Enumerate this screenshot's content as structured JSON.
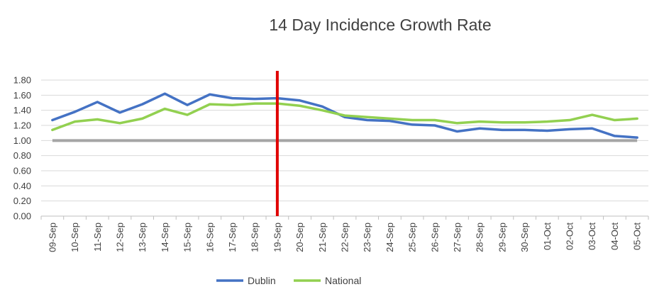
{
  "chart_data": {
    "type": "line",
    "title": "14 Day Incidence Growth Rate",
    "xlabel": "",
    "ylabel": "",
    "categories": [
      "09-Sep",
      "10-Sep",
      "11-Sep",
      "12-Sep",
      "13-Sep",
      "14-Sep",
      "15-Sep",
      "16-Sep",
      "17-Sep",
      "18-Sep",
      "19-Sep",
      "20-Sep",
      "21-Sep",
      "22-Sep",
      "23-Sep",
      "24-Sep",
      "25-Sep",
      "26-Sep",
      "27-Sep",
      "28-Sep",
      "29-Sep",
      "30-Sep",
      "01-Oct",
      "02-Oct",
      "03-Oct",
      "04-Oct",
      "05-Oct"
    ],
    "series": [
      {
        "name": "Dublin",
        "color": "#4472C4",
        "values": [
          1.27,
          1.38,
          1.51,
          1.37,
          1.48,
          1.62,
          1.47,
          1.61,
          1.56,
          1.55,
          1.56,
          1.53,
          1.45,
          1.31,
          1.27,
          1.26,
          1.21,
          1.2,
          1.12,
          1.16,
          1.14,
          1.14,
          1.13,
          1.15,
          1.16,
          1.06,
          1.04
        ]
      },
      {
        "name": "National",
        "color": "#92D050",
        "values": [
          1.14,
          1.25,
          1.28,
          1.23,
          1.29,
          1.42,
          1.34,
          1.48,
          1.47,
          1.49,
          1.49,
          1.46,
          1.4,
          1.33,
          1.31,
          1.29,
          1.27,
          1.27,
          1.23,
          1.25,
          1.24,
          1.24,
          1.25,
          1.27,
          1.34,
          1.27,
          1.29
        ]
      }
    ],
    "reference_line": {
      "value": 1.0,
      "color": "#A5A5A5"
    },
    "marker_line": {
      "category": "19-Sep",
      "color": "#E00000"
    },
    "yticks": [
      "0.00",
      "0.20",
      "0.40",
      "0.60",
      "0.80",
      "1.00",
      "1.20",
      "1.40",
      "1.60",
      "1.80"
    ],
    "ylim": [
      0,
      1.8
    ],
    "grid": true,
    "legend": "bottom"
  }
}
